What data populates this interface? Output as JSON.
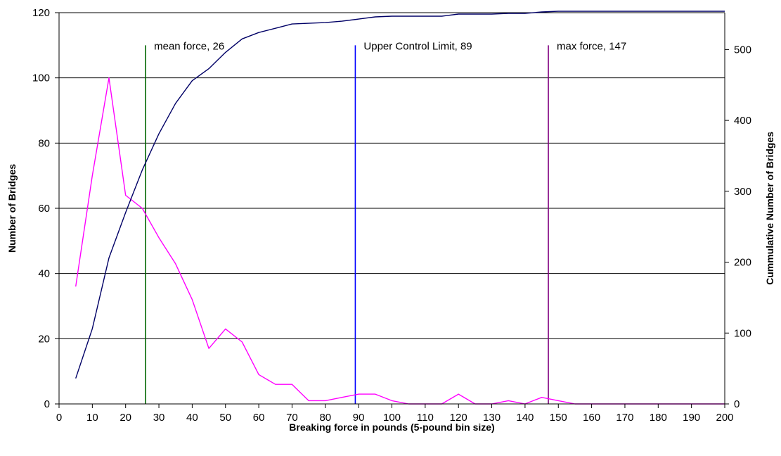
{
  "chart_data": {
    "type": "line",
    "xlabel": "Breaking force in pounds (5-pound bin size)",
    "ylabel": "Number of Bridges",
    "y2label": "Cummulative Number of Bridges",
    "xlim": [
      0,
      200
    ],
    "ylim": [
      0,
      120
    ],
    "y2lim": [
      0,
      552
    ],
    "x_ticks": [
      0,
      10,
      20,
      30,
      40,
      50,
      60,
      70,
      80,
      90,
      100,
      110,
      120,
      130,
      140,
      150,
      160,
      170,
      180,
      190,
      200
    ],
    "y_ticks": [
      0,
      20,
      40,
      60,
      80,
      100,
      120
    ],
    "y2_ticks": [
      0,
      100,
      200,
      300,
      400,
      500
    ],
    "grid": "horizontal",
    "series": [
      {
        "axis": "left",
        "color": "#ff00ff",
        "x": [
          5,
          10,
          15,
          20,
          25,
          30,
          35,
          40,
          45,
          50,
          55,
          60,
          65,
          70,
          75,
          80,
          85,
          90,
          95,
          100,
          105,
          110,
          115,
          120,
          125,
          130,
          135,
          140,
          145,
          150,
          155,
          160,
          165,
          170,
          175,
          180,
          185,
          190,
          195,
          200
        ],
        "values": [
          36,
          70,
          100,
          64,
          60,
          51,
          43,
          32,
          17,
          23,
          19,
          9,
          6,
          6,
          1,
          1,
          2,
          3,
          3,
          1,
          0,
          0,
          0,
          3,
          0,
          0,
          1,
          0,
          2,
          1,
          0,
          0,
          0,
          0,
          0,
          0,
          0,
          0,
          0,
          0
        ]
      },
      {
        "axis": "right",
        "color": "#000066",
        "x": [
          5,
          10,
          15,
          20,
          25,
          30,
          35,
          40,
          45,
          50,
          55,
          60,
          65,
          70,
          75,
          80,
          85,
          90,
          95,
          100,
          105,
          110,
          115,
          120,
          125,
          130,
          135,
          140,
          145,
          150,
          155,
          160,
          165,
          170,
          175,
          180,
          185,
          190,
          195,
          200
        ],
        "values": [
          36,
          106,
          206,
          270,
          330,
          381,
          424,
          456,
          473,
          496,
          515,
          524,
          530,
          536,
          537,
          538,
          540,
          543,
          546,
          547,
          547,
          547,
          547,
          550,
          550,
          550,
          551,
          551,
          553,
          554,
          554,
          554,
          554,
          554,
          554,
          554,
          554,
          554,
          554,
          554
        ]
      }
    ],
    "markers": [
      {
        "x": 26,
        "label": "mean force, 26",
        "color": "#006600"
      },
      {
        "x": 89,
        "label": "Upper Control Limit, 89",
        "color": "#0000ff"
      },
      {
        "x": 147,
        "label": "max force, 147",
        "color": "#800080"
      }
    ]
  }
}
